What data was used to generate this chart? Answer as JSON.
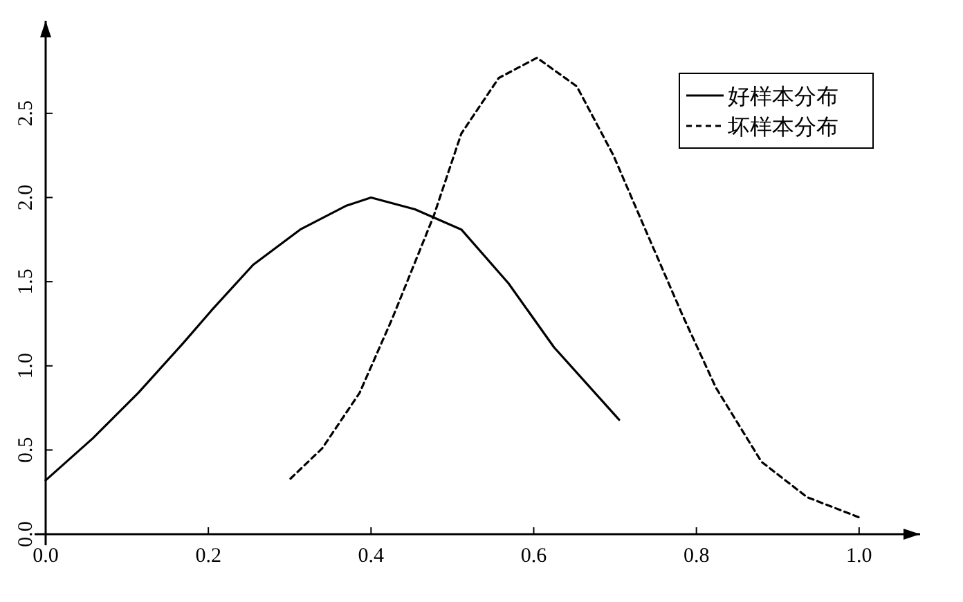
{
  "chart_data": {
    "type": "line",
    "xlim": [
      0,
      1.075
    ],
    "ylim": [
      0,
      3.05
    ],
    "xticks": [
      {
        "value": 0,
        "label": "0.0"
      },
      {
        "value": 0.2,
        "label": "0.2"
      },
      {
        "value": 0.4,
        "label": "0.4"
      },
      {
        "value": 0.6,
        "label": "0.6"
      },
      {
        "value": 0.8,
        "label": "0.8"
      },
      {
        "value": 1,
        "label": "1.0"
      }
    ],
    "yticks": [
      {
        "value": 0,
        "label": "0.0"
      },
      {
        "value": 0.5,
        "label": "0.5"
      },
      {
        "value": 1,
        "label": "1.0"
      },
      {
        "value": 1.5,
        "label": "1.5"
      },
      {
        "value": 2,
        "label": "2.0"
      },
      {
        "value": 2.5,
        "label": "2.5"
      }
    ],
    "legend": "top right",
    "grid": false,
    "series": [
      {
        "name": "好样本分布",
        "color": "#000000",
        "line_style": "solid",
        "x": [
          0,
          0.058,
          0.114,
          0.17,
          0.204,
          0.255,
          0.313,
          0.369,
          0.4,
          0.454,
          0.511,
          0.569,
          0.625,
          0.705
        ],
        "values": [
          0.32,
          0.57,
          0.84,
          1.14,
          1.33,
          1.6,
          1.81,
          1.95,
          2.0,
          1.93,
          1.81,
          1.49,
          1.11,
          0.68
        ]
      },
      {
        "name": "坏样本分布",
        "color": "#000000",
        "line_style": "dashed",
        "x": [
          0.301,
          0.34,
          0.386,
          0.426,
          0.477,
          0.511,
          0.557,
          0.604,
          0.653,
          0.698,
          0.739,
          0.783,
          0.824,
          0.88,
          0.936,
          1.0
        ],
        "values": [
          0.33,
          0.51,
          0.84,
          1.28,
          1.89,
          2.38,
          2.71,
          2.83,
          2.66,
          2.25,
          1.79,
          1.3,
          0.87,
          0.43,
          0.22,
          0.1
        ]
      }
    ]
  }
}
